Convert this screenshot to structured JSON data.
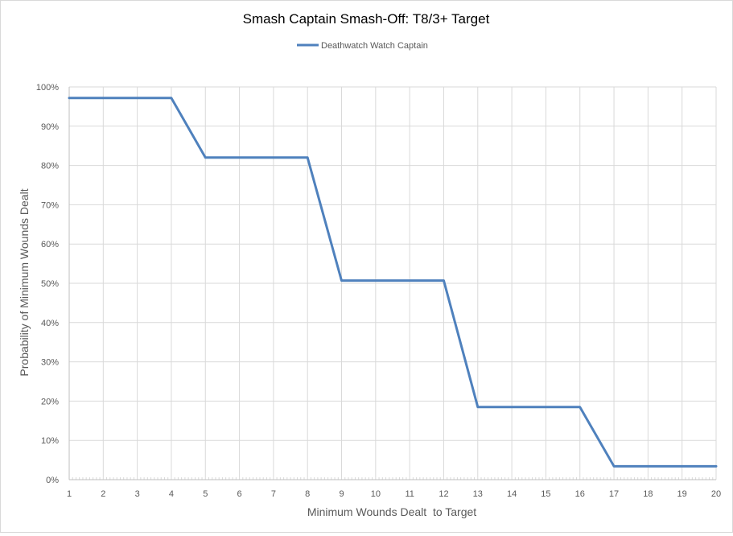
{
  "chart_data": {
    "type": "line",
    "title": "Smash Captain Smash-Off: T8/3+ Target",
    "xlabel": "Minimum Wounds Dealt  to Target",
    "ylabel": "Probability of Minimum Wounds Dealt",
    "x": [
      1,
      2,
      3,
      4,
      5,
      6,
      7,
      8,
      9,
      10,
      11,
      12,
      13,
      14,
      15,
      16,
      17,
      18,
      19,
      20
    ],
    "xlim": [
      1,
      20
    ],
    "ylim": [
      0,
      100
    ],
    "y_ticks": [
      "0%",
      "10%",
      "20%",
      "30%",
      "40%",
      "50%",
      "60%",
      "70%",
      "80%",
      "90%",
      "100%"
    ],
    "grid": true,
    "legend_position": "top",
    "series": [
      {
        "name": "Deathwatch Watch Captain",
        "color": "#4f81bd",
        "values": [
          97.2,
          97.2,
          97.2,
          97.2,
          82.0,
          82.0,
          82.0,
          82.0,
          50.7,
          50.7,
          50.7,
          50.7,
          18.5,
          18.5,
          18.5,
          18.5,
          3.4,
          3.4,
          3.4,
          3.4
        ]
      }
    ]
  }
}
